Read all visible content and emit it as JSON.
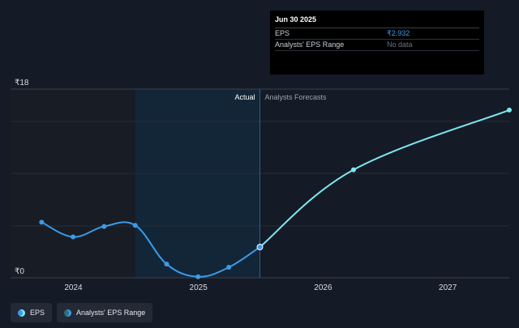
{
  "chart_data": {
    "type": "line",
    "y_axis": {
      "currency_symbol": "₹",
      "min": 0,
      "max": 18,
      "min_label": "₹0",
      "max_label": "₹18"
    },
    "x_ticks": [
      "2024",
      "2025",
      "2026",
      "2027"
    ],
    "x_range": [
      "2023-07-01",
      "2027-06-30"
    ],
    "divider_date": "2025-06-30",
    "shaded_start": "2024-06-30",
    "period_labels": {
      "actual": "Actual",
      "forecast": "Analysts Forecasts"
    },
    "series": [
      {
        "name": "EPS",
        "color": "#3b9be8",
        "points": [
          {
            "date": "2023-09-30",
            "value": 5.3
          },
          {
            "date": "2023-12-31",
            "value": 3.9
          },
          {
            "date": "2024-03-31",
            "value": 4.9
          },
          {
            "date": "2024-06-30",
            "value": 5.0
          },
          {
            "date": "2024-09-30",
            "value": 1.3
          },
          {
            "date": "2024-12-31",
            "value": 0.1
          },
          {
            "date": "2025-03-31",
            "value": 1.0
          },
          {
            "date": "2025-06-30",
            "value": 2.932
          }
        ]
      },
      {
        "name": "EPS Forecast",
        "color": "#7ee8f0",
        "points": [
          {
            "date": "2025-06-30",
            "value": 2.932
          },
          {
            "date": "2026-03-31",
            "value": 10.3
          },
          {
            "date": "2027-06-30",
            "value": 16.0
          }
        ]
      }
    ]
  },
  "tooltip": {
    "date": "Jun 30 2025",
    "rows": [
      {
        "label": "EPS",
        "value": "₹2.932"
      },
      {
        "label": "Analysts' EPS Range",
        "value": "No data"
      }
    ]
  },
  "legend": [
    {
      "label": "EPS",
      "color": "#3b9be8",
      "ring": "#7ee8f0"
    },
    {
      "label": "Analysts' EPS Range",
      "color": "#2e6f79",
      "ring": "#3b9be8"
    }
  ]
}
